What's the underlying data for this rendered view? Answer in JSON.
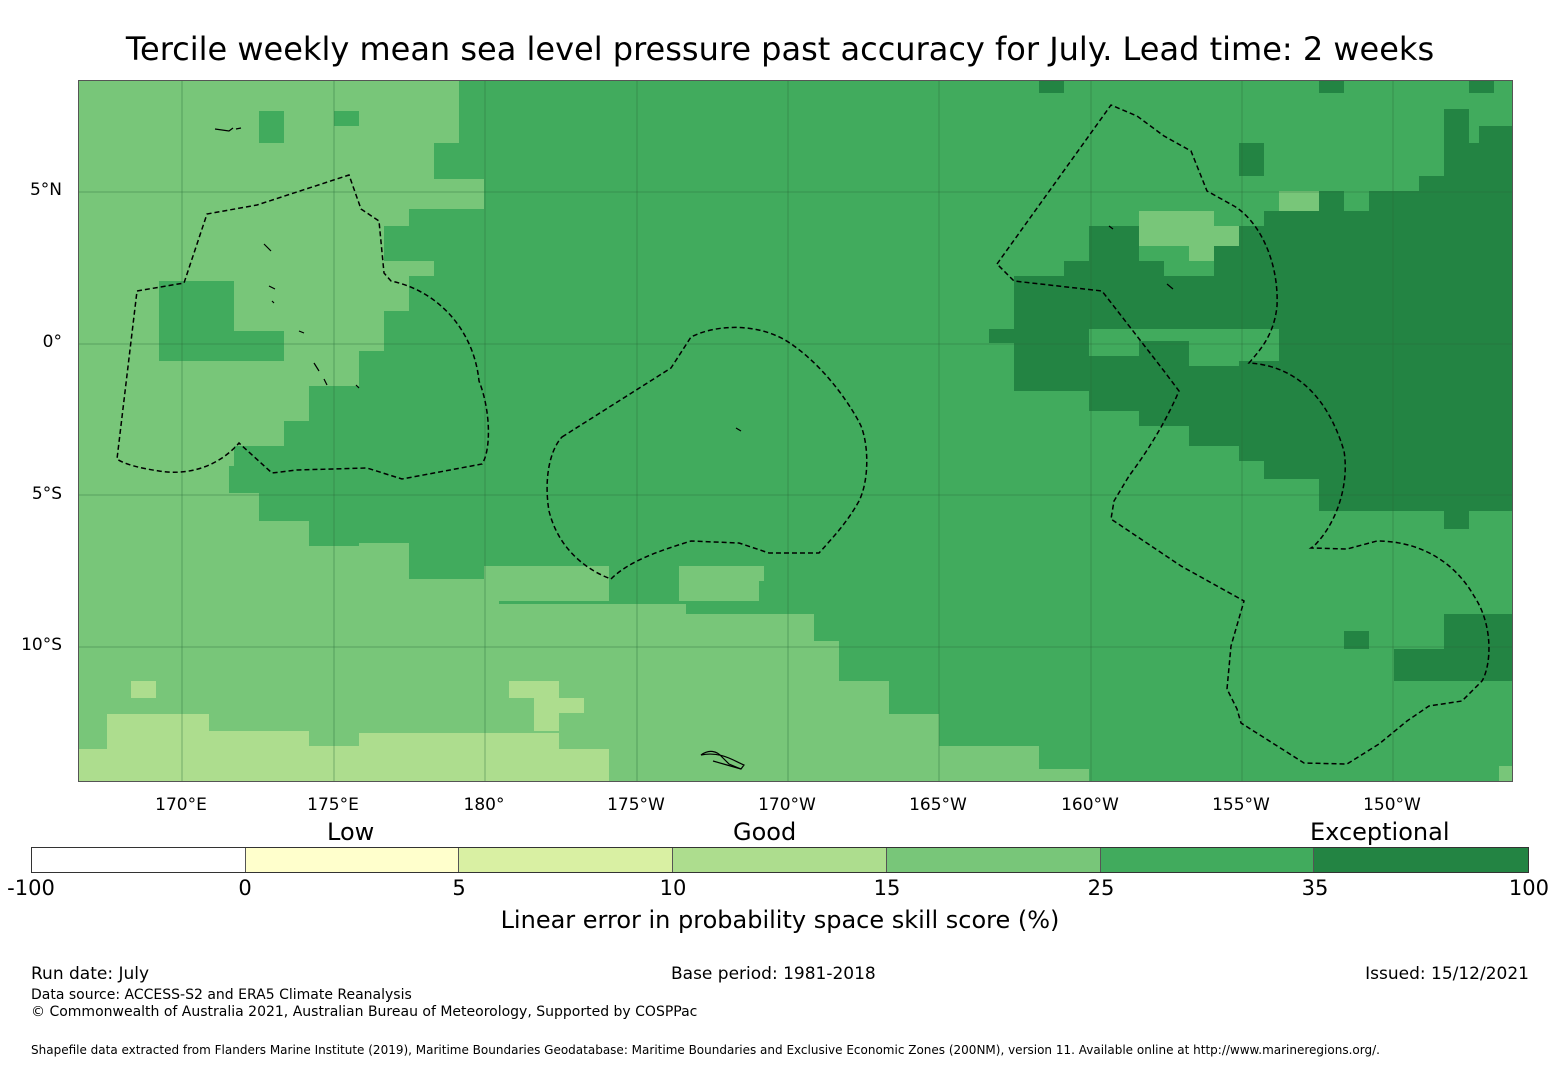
{
  "title": "Tercile weekly mean sea level pressure past accuracy for July. Lead time: 2 weeks",
  "map": {
    "lat_labels": [
      "5°N",
      "0°",
      "5°S",
      "10°S"
    ],
    "lon_labels": [
      "170°E",
      "175°E",
      "180°",
      "175°W",
      "170°W",
      "165°W",
      "160°W",
      "155°W",
      "150°W"
    ],
    "colors": {
      "skill_15_25": "#78c679",
      "skill_25_35": "#41ab5d",
      "skill_35_100": "#238443",
      "skill_10_15": "#addd8e",
      "grid": "#2a6b3a",
      "eez_boundary": "#000000"
    }
  },
  "colorbar": {
    "category_labels": [
      "Low",
      "Good",
      "Exceptional"
    ],
    "ticks": [
      "-100",
      "0",
      "5",
      "10",
      "15",
      "25",
      "35",
      "100"
    ],
    "segment_colors": [
      "#ffffff",
      "#ffffcc",
      "#d9f0a3",
      "#addd8e",
      "#78c679",
      "#41ab5d",
      "#238443"
    ],
    "title": "Linear error in probability space skill score (%)"
  },
  "footer": {
    "run_date": "Run date: July",
    "base_period": "Base period: 1981-2018",
    "issued": "Issued: 15/12/2021",
    "data_source": "Data source: ACCESS-S2 and ERA5 Climate Reanalysis",
    "copyright": "© Commonwealth of Australia 2021, Australian Bureau of Meteorology, Supported by COSPPac",
    "shapefile": "Shapefile data extracted from Flanders Marine Institute (2019), Maritime Boundaries Geodatabase: Maritime Boundaries and Exclusive Economic Zones (200NM), version 11. Available online at http://www.marineregions.org/."
  }
}
